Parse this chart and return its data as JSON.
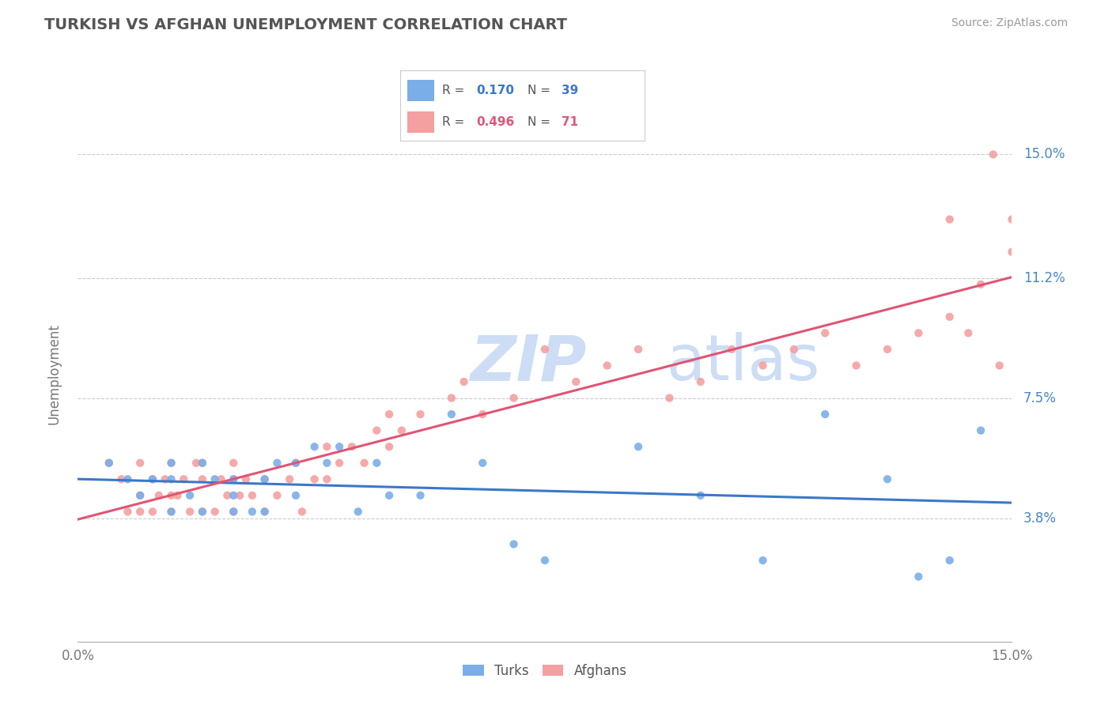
{
  "title": "TURKISH VS AFGHAN UNEMPLOYMENT CORRELATION CHART",
  "source": "Source: ZipAtlas.com",
  "ylabel_label": "Unemployment",
  "ytick_vals": [
    0.038,
    0.075,
    0.112,
    0.15
  ],
  "ytick_labels": [
    "3.8%",
    "7.5%",
    "11.2%",
    "15.0%"
  ],
  "xlim": [
    0.0,
    0.15
  ],
  "ylim": [
    0.0,
    0.165
  ],
  "turks_R": "0.170",
  "turks_N": "39",
  "afghans_R": "0.496",
  "afghans_N": "71",
  "turks_color": "#7baee8",
  "afghans_color": "#f4a0a0",
  "turks_line_color": "#3a78c9",
  "afghans_line_color": "#e05575",
  "watermark_zip": "ZIP",
  "watermark_atlas": "atlas",
  "watermark_color": "#ccddf5",
  "background_color": "#ffffff",
  "grid_color": "#cccccc",
  "turks_x": [
    0.005,
    0.008,
    0.01,
    0.012,
    0.015,
    0.015,
    0.015,
    0.018,
    0.02,
    0.02,
    0.022,
    0.025,
    0.025,
    0.025,
    0.028,
    0.03,
    0.03,
    0.032,
    0.035,
    0.035,
    0.038,
    0.04,
    0.042,
    0.045,
    0.048,
    0.05,
    0.055,
    0.06,
    0.065,
    0.07,
    0.075,
    0.09,
    0.1,
    0.11,
    0.12,
    0.13,
    0.135,
    0.14,
    0.145
  ],
  "turks_y": [
    0.055,
    0.05,
    0.045,
    0.05,
    0.04,
    0.05,
    0.055,
    0.045,
    0.04,
    0.055,
    0.05,
    0.04,
    0.045,
    0.05,
    0.04,
    0.04,
    0.05,
    0.055,
    0.045,
    0.055,
    0.06,
    0.055,
    0.06,
    0.04,
    0.055,
    0.045,
    0.045,
    0.07,
    0.055,
    0.03,
    0.025,
    0.06,
    0.045,
    0.025,
    0.07,
    0.05,
    0.02,
    0.025,
    0.065
  ],
  "afghans_x": [
    0.005,
    0.007,
    0.008,
    0.01,
    0.01,
    0.01,
    0.012,
    0.012,
    0.013,
    0.014,
    0.015,
    0.015,
    0.015,
    0.016,
    0.017,
    0.018,
    0.019,
    0.02,
    0.02,
    0.02,
    0.022,
    0.023,
    0.024,
    0.025,
    0.025,
    0.025,
    0.026,
    0.027,
    0.028,
    0.03,
    0.03,
    0.032,
    0.034,
    0.035,
    0.036,
    0.038,
    0.04,
    0.04,
    0.042,
    0.044,
    0.046,
    0.048,
    0.05,
    0.05,
    0.052,
    0.055,
    0.06,
    0.062,
    0.065,
    0.07,
    0.075,
    0.08,
    0.085,
    0.09,
    0.095,
    0.1,
    0.105,
    0.11,
    0.115,
    0.12,
    0.125,
    0.13,
    0.135,
    0.14,
    0.14,
    0.143,
    0.145,
    0.147,
    0.148,
    0.15,
    0.15
  ],
  "afghans_y": [
    0.055,
    0.05,
    0.04,
    0.04,
    0.045,
    0.055,
    0.04,
    0.05,
    0.045,
    0.05,
    0.04,
    0.045,
    0.055,
    0.045,
    0.05,
    0.04,
    0.055,
    0.04,
    0.05,
    0.055,
    0.04,
    0.05,
    0.045,
    0.04,
    0.05,
    0.055,
    0.045,
    0.05,
    0.045,
    0.04,
    0.05,
    0.045,
    0.05,
    0.055,
    0.04,
    0.05,
    0.05,
    0.06,
    0.055,
    0.06,
    0.055,
    0.065,
    0.06,
    0.07,
    0.065,
    0.07,
    0.075,
    0.08,
    0.07,
    0.075,
    0.09,
    0.08,
    0.085,
    0.09,
    0.075,
    0.08,
    0.09,
    0.085,
    0.09,
    0.095,
    0.085,
    0.09,
    0.095,
    0.1,
    0.13,
    0.095,
    0.11,
    0.15,
    0.085,
    0.12,
    0.13
  ]
}
